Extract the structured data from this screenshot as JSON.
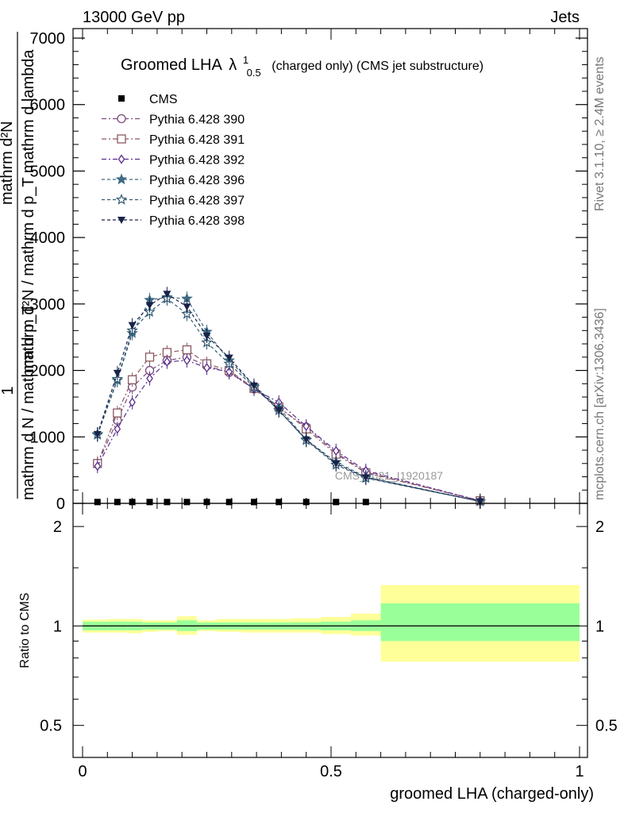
{
  "header": {
    "energy": "13000 GeV pp",
    "category": "Jets"
  },
  "side_labels": {
    "rivet": "Rivet 3.1.10, ≥ 2.4M events",
    "site": "mcplots.cern.ch [arXiv:1306.3436]"
  },
  "watermark": "CMS_2021_I1920187",
  "chart_data": [
    {
      "type": "line",
      "title": {
        "main": "Groomed LHA",
        "lambda": "λ",
        "sup": "1",
        "sub": "0.5",
        "suffix": "(charged only) (CMS jet substructure)"
      },
      "ylabel": {
        "one": "1",
        "den": "mathrm d N / mathrm d p_T",
        "num": "mathrm d²N / mathrm d p_T mathrm d lambda",
        "num_short": "mathrm d²N"
      },
      "xlim": [
        0,
        1
      ],
      "ylim": [
        0,
        7000
      ],
      "yticks": [
        {
          "v": 0,
          "label": "0"
        },
        {
          "v": 1000,
          "label": "1000"
        },
        {
          "v": 2000,
          "label": "2000"
        },
        {
          "v": 3000,
          "label": "3000"
        },
        {
          "v": 4000,
          "label": "4000"
        },
        {
          "v": 5000,
          "label": "5000"
        },
        {
          "v": 6000,
          "label": "6000"
        },
        {
          "v": 7000,
          "label": "7000"
        }
      ],
      "x": [
        0.03,
        0.07,
        0.1,
        0.135,
        0.17,
        0.21,
        0.25,
        0.295,
        0.345,
        0.395,
        0.45,
        0.51,
        0.57,
        0.8
      ],
      "series": [
        {
          "name": "CMS",
          "color": "#000000",
          "marker": "square",
          "dash": "none",
          "values": [
            20,
            20,
            20,
            20,
            20,
            20,
            20,
            20,
            20,
            20,
            20,
            20,
            20,
            null
          ]
        },
        {
          "name": "Pythia 6.428 390",
          "color": "#7a4a7e",
          "marker": "circle",
          "dash": "6,3,2,3",
          "values": [
            590,
            1250,
            1750,
            2000,
            2150,
            2200,
            2070,
            1970,
            1720,
            1440,
            1150,
            760,
            470,
            40
          ]
        },
        {
          "name": "Pythia 6.428 391",
          "color": "#8b5a60",
          "marker": "square-open",
          "dash": "6,3,2,3",
          "values": [
            600,
            1360,
            1860,
            2200,
            2270,
            2310,
            2100,
            2000,
            1730,
            1450,
            1120,
            740,
            460,
            40
          ]
        },
        {
          "name": "Pythia 6.428 392",
          "color": "#5a2d8c",
          "marker": "diamond-open",
          "dash": "6,3,2,3",
          "values": [
            560,
            1120,
            1520,
            1880,
            2130,
            2150,
            2040,
            1980,
            1720,
            1520,
            1160,
            790,
            490,
            40
          ]
        },
        {
          "name": "Pythia 6.428 396",
          "color": "#3e6b84",
          "marker": "star",
          "dash": "4,3",
          "values": [
            1030,
            1850,
            2560,
            3060,
            3100,
            3080,
            2580,
            2150,
            1770,
            1440,
            960,
            620,
            400,
            30
          ]
        },
        {
          "name": "Pythia 6.428 397",
          "color": "#2f5a72",
          "marker": "star-open",
          "dash": "4,3",
          "values": [
            1040,
            1870,
            2600,
            2880,
            3080,
            2850,
            2420,
            2100,
            1750,
            1400,
            950,
            580,
            380,
            30
          ]
        },
        {
          "name": "Pythia 6.428 398",
          "color": "#1a2248",
          "marker": "triangle-down",
          "dash": "4,3",
          "values": [
            1040,
            1960,
            2680,
            2980,
            3150,
            2960,
            2520,
            2190,
            1770,
            1400,
            960,
            600,
            390,
            30
          ]
        }
      ]
    },
    {
      "type": "area",
      "ylabel": "Ratio to CMS",
      "xlabel": "groomed LHA (charged-only)",
      "xlim": [
        0,
        1
      ],
      "ylim": [
        0.4,
        2.35
      ],
      "log_y": true,
      "yticks": [
        {
          "v": 0.5,
          "label": "0.5"
        },
        {
          "v": 1,
          "label": "1"
        },
        {
          "v": 2,
          "label": "2"
        }
      ],
      "xticks": [
        {
          "v": 0,
          "label": "0"
        },
        {
          "v": 0.5,
          "label": "0.5"
        },
        {
          "v": 1,
          "label": "1"
        }
      ],
      "bands": {
        "edges": [
          0,
          0.05,
          0.09,
          0.12,
          0.15,
          0.19,
          0.23,
          0.27,
          0.32,
          0.37,
          0.42,
          0.48,
          0.54,
          0.6,
          1.0
        ],
        "green_lo": [
          0.97,
          0.97,
          0.97,
          0.975,
          0.975,
          0.965,
          0.975,
          0.975,
          0.975,
          0.975,
          0.975,
          0.97,
          0.965,
          0.9
        ],
        "green_hi": [
          1.03,
          1.03,
          1.03,
          1.025,
          1.025,
          1.04,
          1.025,
          1.025,
          1.025,
          1.025,
          1.025,
          1.03,
          1.04,
          1.17
        ],
        "yellow_lo": [
          0.955,
          0.955,
          0.95,
          0.96,
          0.965,
          0.94,
          0.965,
          0.96,
          0.955,
          0.955,
          0.955,
          0.945,
          0.935,
          0.78
        ],
        "yellow_hi": [
          1.045,
          1.05,
          1.05,
          1.04,
          1.04,
          1.07,
          1.04,
          1.05,
          1.05,
          1.05,
          1.055,
          1.065,
          1.09,
          1.33
        ]
      },
      "colors": {
        "green": "#99ff99",
        "yellow": "#ffff99"
      }
    }
  ]
}
